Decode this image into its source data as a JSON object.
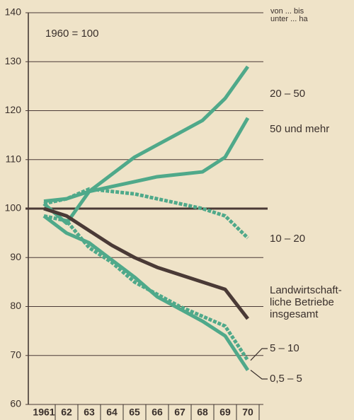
{
  "chart_data": {
    "type": "line",
    "annotation": "1960 = 100",
    "legend_title": "von ... bis\nunter ... ha",
    "categories": [
      "1961",
      "62",
      "63",
      "64",
      "65",
      "66",
      "67",
      "68",
      "69",
      "70"
    ],
    "series": [
      {
        "name": "20 – 50",
        "color": "#4fa98a",
        "style": "solid",
        "values": [
          101,
          97,
          103.5,
          107,
          110.5,
          113,
          115.5,
          118,
          122.5,
          129
        ]
      },
      {
        "name": "50 und mehr",
        "color": "#4fa98a",
        "style": "solid",
        "values": [
          101.5,
          102,
          103.5,
          104.5,
          105.5,
          106.5,
          107,
          107.5,
          110.5,
          118.5
        ]
      },
      {
        "name": "10 – 20",
        "color": "#4fa98a",
        "style": "dashed",
        "values": [
          101,
          102,
          104,
          103.5,
          103,
          102,
          101,
          100,
          98.5,
          94
        ]
      },
      {
        "name": "Landwirtschaft-\nliche Betriebe\ninsgesamt",
        "color": "#4a3a36",
        "style": "solid",
        "values": [
          100,
          98.5,
          95.5,
          92.5,
          90,
          88,
          86.5,
          85,
          83.5,
          77.5
        ]
      },
      {
        "name": "5 – 10",
        "color": "#4fa98a",
        "style": "dashed",
        "values": [
          98.5,
          97.5,
          92,
          89,
          85,
          82.5,
          80,
          78,
          76,
          69
        ]
      },
      {
        "name": "0,5 – 5",
        "color": "#4fa98a",
        "style": "solid",
        "values": [
          98.5,
          95,
          93,
          89.5,
          86,
          82,
          79.5,
          77,
          74,
          67
        ]
      }
    ],
    "ylim": [
      60,
      140
    ],
    "yticks": [
      60,
      70,
      80,
      90,
      100,
      110,
      120,
      130,
      140
    ],
    "baseline": 100,
    "grid": true
  }
}
